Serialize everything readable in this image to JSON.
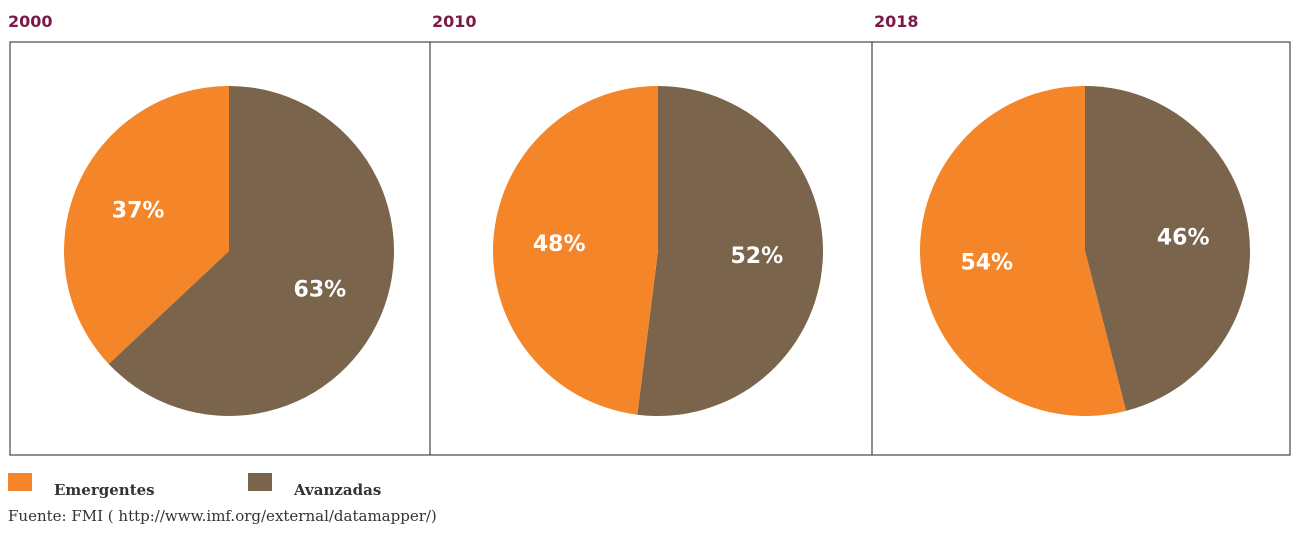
{
  "chart_data": [
    {
      "type": "pie",
      "title": "2000",
      "values": [
        37,
        63
      ],
      "value_labels": [
        "37%",
        "63%"
      ]
    },
    {
      "type": "pie",
      "title": "2010",
      "values": [
        48,
        52
      ],
      "value_labels": [
        "48%",
        "52%"
      ]
    },
    {
      "type": "pie",
      "title": "2018",
      "values": [
        54,
        46
      ],
      "value_labels": [
        "54%",
        "46%"
      ]
    }
  ],
  "legend": {
    "categories": [
      "Emergentes",
      "Avanzadas"
    ],
    "colors": [
      "#f58529",
      "#7a654c"
    ]
  },
  "source": "Fuente: FMI ( http://www.imf.org/external/datamapper/)"
}
